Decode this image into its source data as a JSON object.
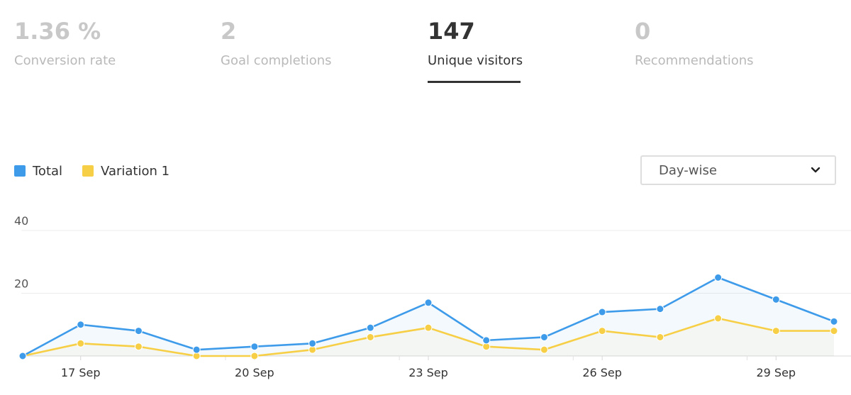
{
  "metrics": [
    {
      "value": "1.36 %",
      "label": "Conversion rate",
      "active": false
    },
    {
      "value": "2",
      "label": "Goal completions",
      "active": false
    },
    {
      "value": "147",
      "label": "Unique visitors",
      "active": true
    },
    {
      "value": "0",
      "label": "Recommendations",
      "active": false
    }
  ],
  "legend": [
    {
      "name": "Total",
      "color": "#3e9bea"
    },
    {
      "name": "Variation 1",
      "color": "#f7cf47"
    }
  ],
  "dropdown": {
    "selected": "Day-wise",
    "icon": "chevron-down-icon"
  },
  "chart_data": {
    "type": "line",
    "x": [
      "16 Sep",
      "17 Sep",
      "18 Sep",
      "19 Sep",
      "20 Sep",
      "21 Sep",
      "22 Sep",
      "23 Sep",
      "24 Sep",
      "25 Sep",
      "26 Sep",
      "27 Sep",
      "28 Sep",
      "29 Sep",
      "30 Sep"
    ],
    "x_tick_labels": [
      "17 Sep",
      "20 Sep",
      "23 Sep",
      "26 Sep",
      "29 Sep"
    ],
    "series": [
      {
        "name": "Total",
        "color": "#3e9bea",
        "values": [
          0,
          10,
          8,
          2,
          3,
          4,
          9,
          17,
          5,
          6,
          14,
          15,
          25,
          18,
          11
        ]
      },
      {
        "name": "Variation 1",
        "color": "#f7cf47",
        "values": [
          0,
          4,
          3,
          0,
          0,
          2,
          6,
          9,
          3,
          2,
          8,
          6,
          12,
          8,
          8
        ]
      }
    ],
    "y_ticks": [
      20,
      40
    ],
    "ylim": [
      0,
      40
    ],
    "grid": true,
    "legend_position": "top-left"
  }
}
